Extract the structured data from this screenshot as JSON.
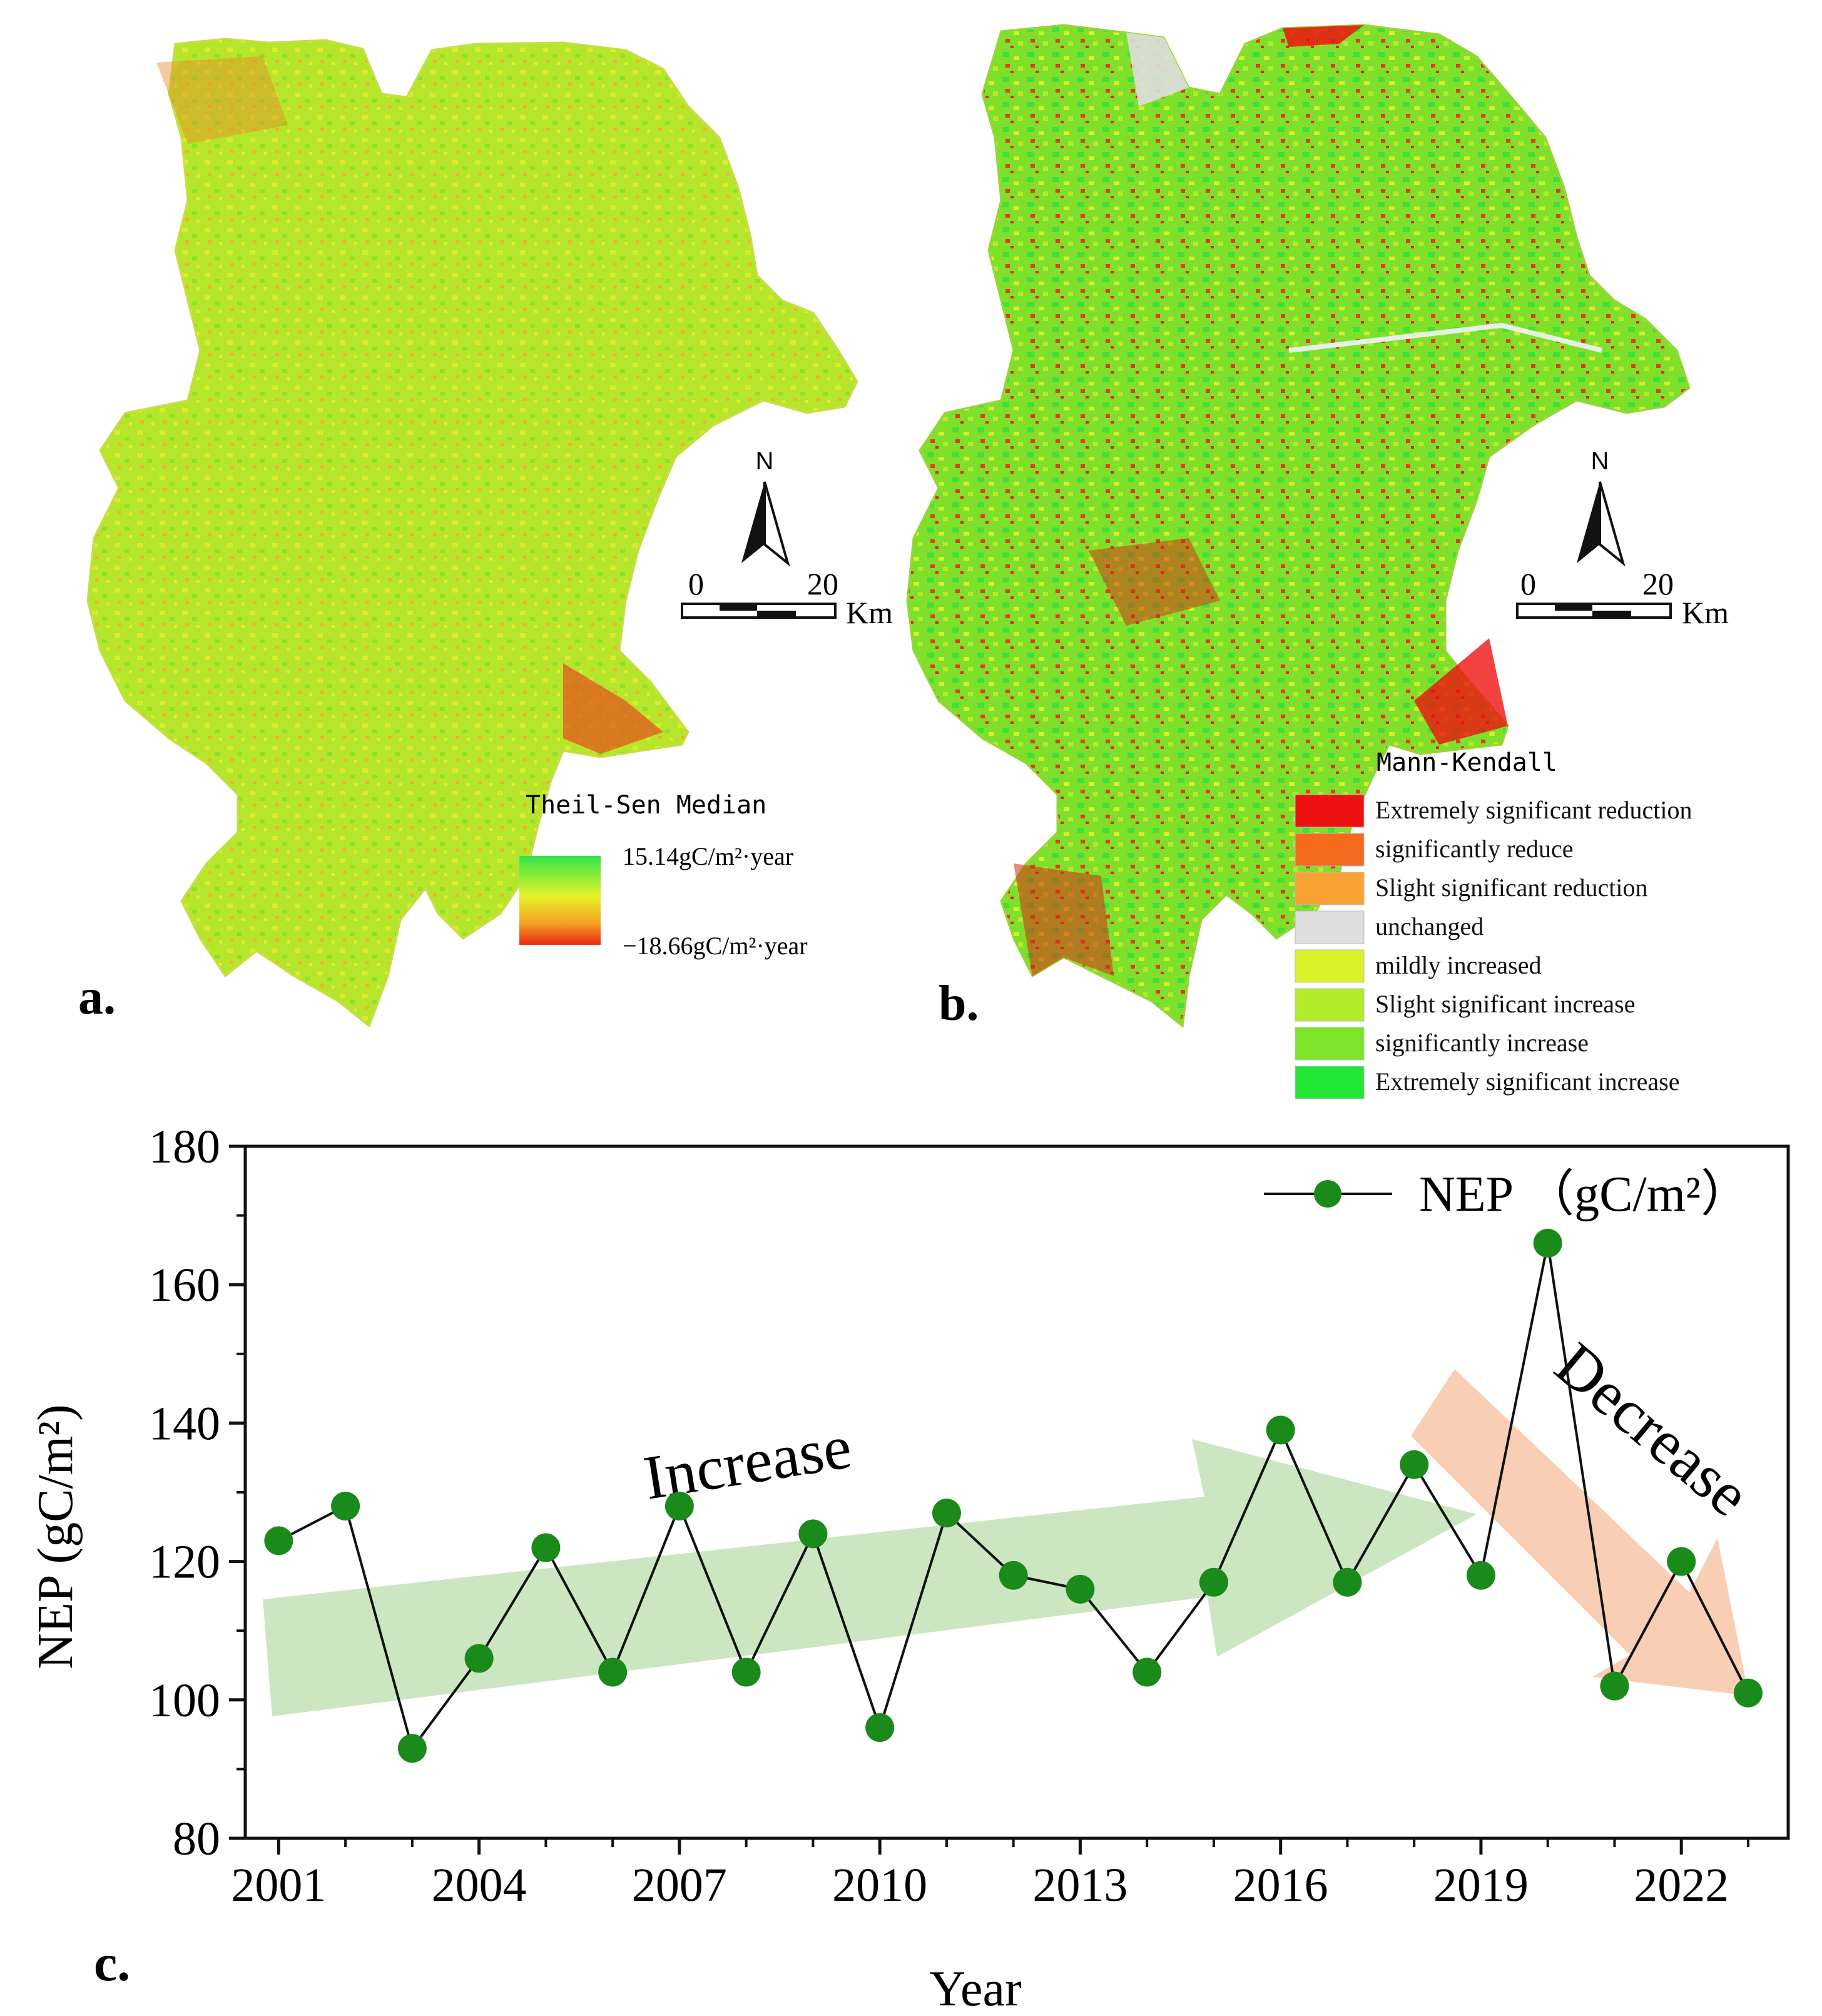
{
  "panel_a": {
    "label": "a.",
    "legend_title": "Theil-Sen Median",
    "legend_max": "15.14gC/m²·year",
    "legend_min": "−18.66gC/m²·year",
    "north": "N",
    "scale_zero": "0",
    "scale_max": "20",
    "scale_unit": "Km"
  },
  "panel_b": {
    "label": "b.",
    "legend_title": "Mann-Kendall",
    "north": "N",
    "scale_zero": "0",
    "scale_max": "20",
    "scale_unit": "Km",
    "legend_items": [
      {
        "label": "Extremely significant reduction",
        "color": "#ee1111"
      },
      {
        "label": "significantly reduce",
        "color": "#f46b1e"
      },
      {
        "label": "Slight significant reduction",
        "color": "#f8a233"
      },
      {
        "label": "unchanged",
        "color": "#dedede"
      },
      {
        "label": "mildly increased",
        "color": "#dcf02a"
      },
      {
        "label": "Slight significant increase",
        "color": "#b4ec2c"
      },
      {
        "label": "significantly increase",
        "color": "#7ce52a"
      },
      {
        "label": "Extremely significant increase",
        "color": "#22e634"
      }
    ]
  },
  "chart_data": {
    "type": "line",
    "panel_label": "c.",
    "xlabel": "Year",
    "ylabel": "NEP (gC/m²)",
    "ylim": [
      80,
      180
    ],
    "xlim": [
      2001,
      2023
    ],
    "yticks": [
      80,
      100,
      120,
      140,
      160,
      180
    ],
    "xticks": [
      2001,
      2004,
      2007,
      2010,
      2013,
      2016,
      2019,
      2022
    ],
    "x": [
      2001,
      2002,
      2003,
      2004,
      2005,
      2006,
      2007,
      2008,
      2009,
      2010,
      2011,
      2012,
      2013,
      2014,
      2015,
      2016,
      2017,
      2018,
      2019,
      2020,
      2021,
      2022,
      2023
    ],
    "series": [
      {
        "name": "NEP （gC/m²）",
        "color": "#1a8a1a",
        "values": [
          123,
          128,
          93,
          106,
          122,
          104,
          128,
          104,
          124,
          96,
          127,
          118,
          116,
          104,
          117,
          139,
          117,
          134,
          118,
          166,
          102,
          120,
          101
        ]
      }
    ],
    "annotations": [
      {
        "text": "Increase",
        "color": "#b9dca9"
      },
      {
        "text": "Decrease",
        "color": "#f6c3a3"
      }
    ],
    "legend_position": "top-right",
    "grid": false
  }
}
